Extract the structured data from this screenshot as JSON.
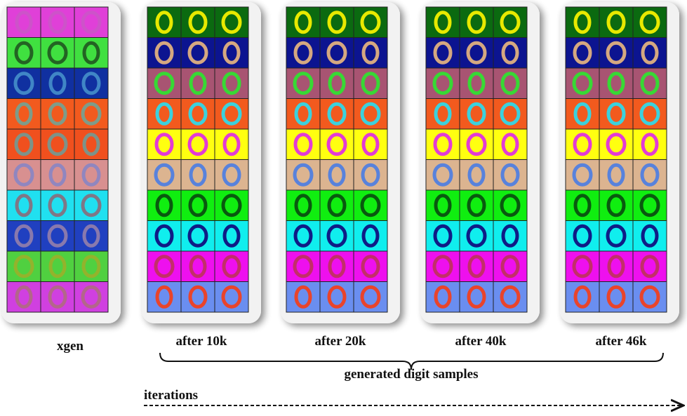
{
  "panels": [
    {
      "label": "xgen"
    },
    {
      "label": "after 10k"
    },
    {
      "label": "after 20k"
    },
    {
      "label": "after 40k"
    },
    {
      "label": "after 46k"
    }
  ],
  "brace_label": "generated digit samples",
  "axis_label": "iterations"
}
